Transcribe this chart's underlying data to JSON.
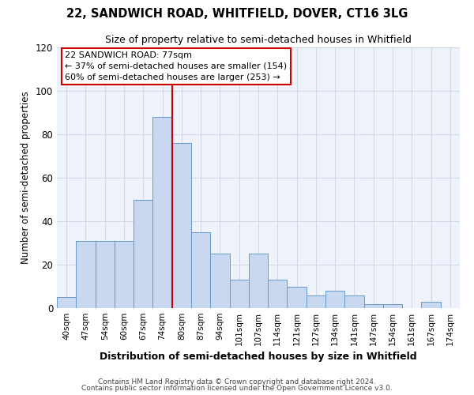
{
  "title": "22, SANDWICH ROAD, WHITFIELD, DOVER, CT16 3LG",
  "subtitle": "Size of property relative to semi-detached houses in Whitfield",
  "xlabel": "Distribution of semi-detached houses by size in Whitfield",
  "ylabel": "Number of semi-detached properties",
  "bar_labels": [
    "40sqm",
    "47sqm",
    "54sqm",
    "60sqm",
    "67sqm",
    "74sqm",
    "80sqm",
    "87sqm",
    "94sqm",
    "101sqm",
    "107sqm",
    "114sqm",
    "121sqm",
    "127sqm",
    "134sqm",
    "141sqm",
    "147sqm",
    "154sqm",
    "161sqm",
    "167sqm",
    "174sqm"
  ],
  "bar_values": [
    5,
    31,
    31,
    31,
    50,
    88,
    76,
    35,
    25,
    13,
    25,
    13,
    10,
    6,
    8,
    6,
    2,
    2,
    0,
    3,
    0
  ],
  "bar_color": "#c8d8f0",
  "bar_edge_color": "#6699cc",
  "grid_color": "#d0d8e8",
  "background_color": "#eef2fb",
  "fig_background": "#ffffff",
  "vline_x_idx": 5,
  "vline_color": "#cc0000",
  "ylim": [
    0,
    120
  ],
  "yticks": [
    0,
    20,
    40,
    60,
    80,
    100,
    120
  ],
  "annotation_title": "22 SANDWICH ROAD: 77sqm",
  "annotation_line1": "← 37% of semi-detached houses are smaller (154)",
  "annotation_line2": "60% of semi-detached houses are larger (253) →",
  "annotation_box_color": "#ffffff",
  "annotation_border_color": "#cc0000",
  "footer1": "Contains HM Land Registry data © Crown copyright and database right 2024.",
  "footer2": "Contains public sector information licensed under the Open Government Licence v3.0."
}
